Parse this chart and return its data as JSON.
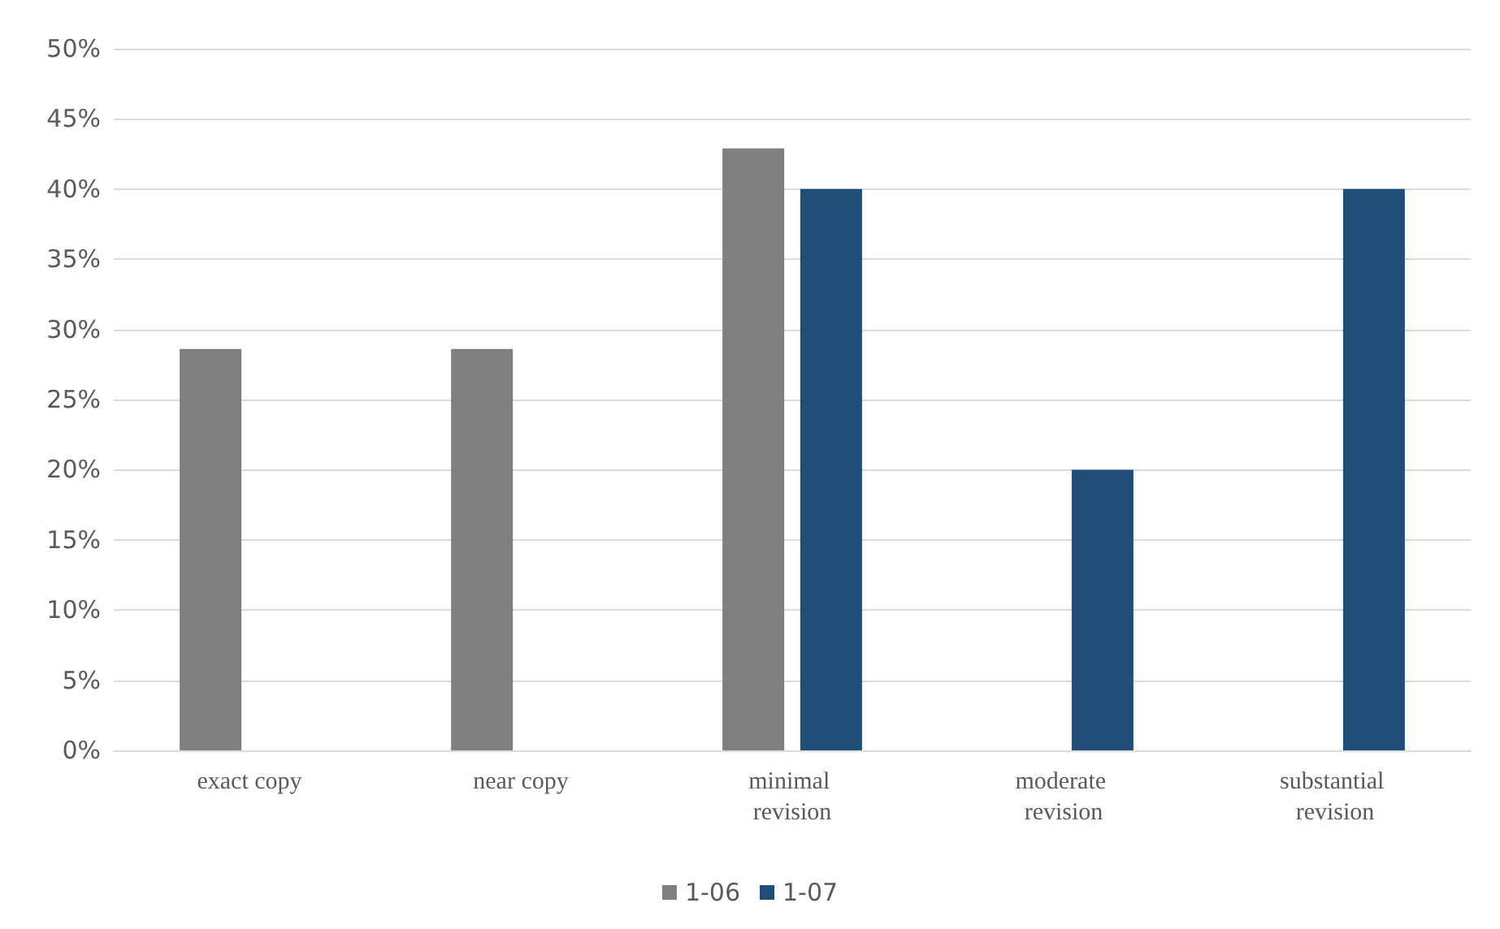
{
  "chart_data": {
    "type": "bar",
    "categories": [
      "exact copy",
      "near copy",
      "minimal revision",
      "moderate revision",
      "substantial revision"
    ],
    "series": [
      {
        "name": "1-06",
        "color": "#7f7f7f",
        "values": [
          28.6,
          28.6,
          42.9,
          0,
          0
        ]
      },
      {
        "name": "1-07",
        "color": "#1f4e79",
        "values": [
          0,
          0,
          40,
          20,
          40
        ]
      }
    ],
    "ylim": [
      0,
      50
    ],
    "yticks": [
      {
        "value": 0,
        "label": "0%"
      },
      {
        "value": 5,
        "label": "5%"
      },
      {
        "value": 10,
        "label": "10%"
      },
      {
        "value": 15,
        "label": "15%"
      },
      {
        "value": 20,
        "label": "20%"
      },
      {
        "value": 25,
        "label": "25%"
      },
      {
        "value": 30,
        "label": "30%"
      },
      {
        "value": 35,
        "label": "35%"
      },
      {
        "value": 40,
        "label": "40%"
      },
      {
        "value": 45,
        "label": "45%"
      },
      {
        "value": 50,
        "label": "50%"
      }
    ],
    "grid": "y",
    "legend": "bottom"
  }
}
